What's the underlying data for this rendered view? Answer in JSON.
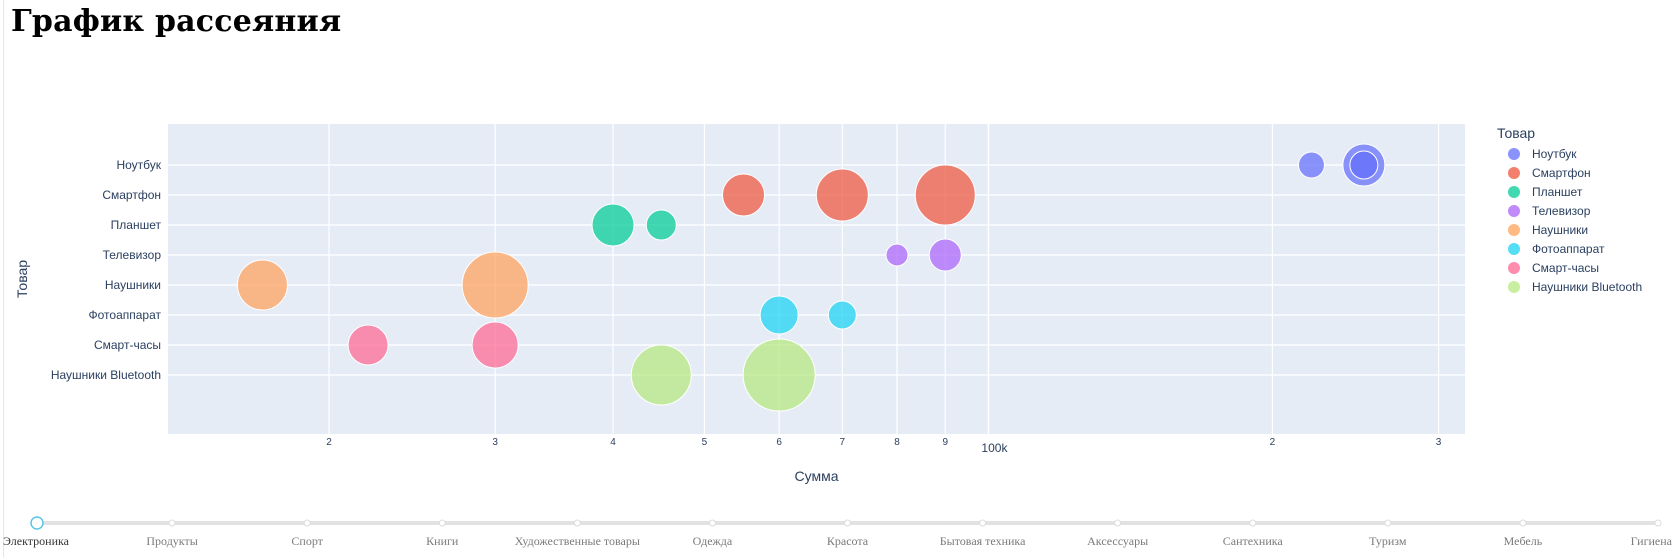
{
  "page": {
    "title": "График рассеяния"
  },
  "chart_data": {
    "type": "scatter",
    "subtype": "bubble",
    "x_scale": "log",
    "xlabel": "Сумма",
    "ylabel": "Товар",
    "legend_title": "Товар",
    "legend_position": "right",
    "grid": true,
    "plot_background": "#e5ecf6",
    "x_major_tick_labels": [
      "2",
      "3",
      "4",
      "5",
      "6",
      "7",
      "8",
      "9",
      "100k",
      "2",
      "3"
    ],
    "categories": [
      "Ноутбук",
      "Смартфон",
      "Планшет",
      "Телевизор",
      "Наушники",
      "Фотоаппарат",
      "Смарт-часы",
      "Наушники Bluetooth"
    ],
    "series": [
      {
        "name": "Ноутбук",
        "color": "#636efa",
        "points": [
          {
            "x": 220000,
            "size": 26
          },
          {
            "x": 250000,
            "size": 42
          },
          {
            "x": 250000,
            "size": 28
          }
        ]
      },
      {
        "name": "Смартфон",
        "color": "#ef553b",
        "points": [
          {
            "x": 55000,
            "size": 42
          },
          {
            "x": 70000,
            "size": 52
          },
          {
            "x": 90000,
            "size": 60
          }
        ]
      },
      {
        "name": "Планшет",
        "color": "#00cc96",
        "points": [
          {
            "x": 40000,
            "size": 42
          },
          {
            "x": 45000,
            "size": 30
          }
        ]
      },
      {
        "name": "Телевизор",
        "color": "#ab63fa",
        "points": [
          {
            "x": 80000,
            "size": 22
          },
          {
            "x": 90000,
            "size": 32
          }
        ]
      },
      {
        "name": "Наушники",
        "color": "#ffa15a",
        "points": [
          {
            "x": 17000,
            "size": 50
          },
          {
            "x": 30000,
            "size": 66
          }
        ]
      },
      {
        "name": "Фотоаппарат",
        "color": "#19d3f3",
        "points": [
          {
            "x": 60000,
            "size": 38
          },
          {
            "x": 70000,
            "size": 28
          }
        ]
      },
      {
        "name": "Смарт-часы",
        "color": "#ff6692",
        "points": [
          {
            "x": 22000,
            "size": 40
          },
          {
            "x": 30000,
            "size": 46
          }
        ]
      },
      {
        "name": "Наушники Bluetooth",
        "color": "#b6e880",
        "points": [
          {
            "x": 45000,
            "size": 60
          },
          {
            "x": 60000,
            "size": 72
          }
        ]
      }
    ]
  },
  "slider": {
    "active_index": 0,
    "steps": [
      "Электроника",
      "Продукты",
      "Спорт",
      "Книги",
      "Художественные товары",
      "Одежда",
      "Красота",
      "Бытовая техника",
      "Аксессуары",
      "Сантехника",
      "Туризм",
      "Мебель",
      "Гигиена"
    ]
  }
}
